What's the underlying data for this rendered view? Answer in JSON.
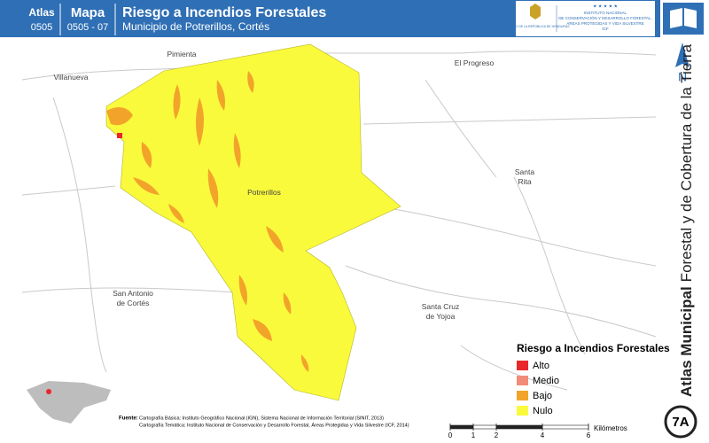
{
  "header": {
    "atlas_label": "Atlas",
    "atlas_code": "0505",
    "map_label": "Mapa",
    "map_code": "0505 - 07",
    "title": "Riesgo a Incendios Forestales",
    "subtitle": "Municipio de Potrerillos, Cortés",
    "logo_left": "GOBIERNO DE LA REPÚBLICA DE HONDURAS",
    "logo_right": [
      "INSTITUTO NACIONAL",
      "DE CONSERVACIÓN Y DESARROLLO FORESTAL,",
      "ÁREAS PROTEGIDAS Y VIDA SILVESTRE",
      "ICF"
    ]
  },
  "places": [
    {
      "lines": [
        "Pimienta"
      ]
    },
    {
      "lines": [
        "Villanueva"
      ]
    },
    {
      "lines": [
        "El Progreso"
      ]
    },
    {
      "lines": [
        "Santa",
        "Rita"
      ]
    },
    {
      "lines": [
        "Potrerillos"
      ]
    },
    {
      "lines": [
        "San Antonio",
        "de Cortés"
      ]
    },
    {
      "lines": [
        "Santa Cruz",
        "de Yojoa"
      ]
    }
  ],
  "legend": {
    "title": "Riesgo a Incendios Forestales",
    "items": [
      {
        "label": "Alto",
        "color": "#e8262b"
      },
      {
        "label": "Medio",
        "color": "#f08c78"
      },
      {
        "label": "Bajo",
        "color": "#f2a42a"
      },
      {
        "label": "Nulo",
        "color": "#fafa3c"
      }
    ]
  },
  "source": {
    "label": "Fuente:",
    "lines": [
      "Cartografía Básica: Instituto Geográfico Nacional (IGN), Sistema Nacional de Información Territorial (SINIT, 2013)",
      "Cartografía Temática: Instituto Nacional de Conservación y Desarrollo Forestal, Áreas Protegidas y Vida Silvestre (ICF, 2014)"
    ]
  },
  "scale": {
    "ticks": [
      0,
      1,
      2,
      4,
      6
    ],
    "unit": "Kilómetros"
  },
  "side": {
    "north": "N",
    "title_bold": "Atlas Municipal",
    "title_rest": "Forestal y de Cobertura de la Tierra",
    "sheet": "7A"
  }
}
